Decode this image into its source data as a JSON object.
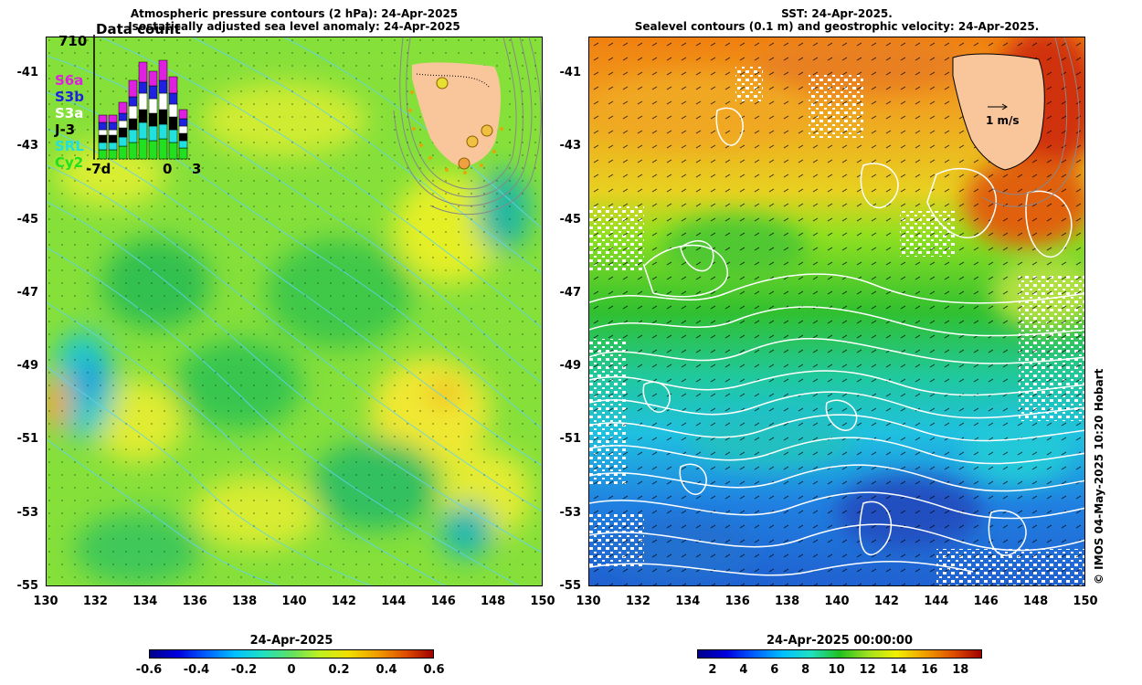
{
  "left_panel": {
    "title_line1": "Atmospheric pressure contours (2 hPa): 24-Apr-2025",
    "title_line2": "Isostatically adjusted sea level anomaly: 24-Apr-2025",
    "colorbar": {
      "title": "24-Apr-2025",
      "ticks": [
        "-0.6",
        "-0.4",
        "-0.2",
        "0",
        "0.2",
        "0.4",
        "0.6"
      ],
      "range": [
        -0.6,
        0.6
      ]
    },
    "inset": {
      "title": "Data count",
      "max_label": "710",
      "x_labels": [
        "-7d",
        "0",
        "3"
      ],
      "satellites": [
        {
          "name": "S6a",
          "color": "#e020e0"
        },
        {
          "name": "S3b",
          "color": "#2020e0"
        },
        {
          "name": "S3a",
          "color": "#ffffff"
        },
        {
          "name": "J-3",
          "color": "#000000"
        },
        {
          "name": "SRL",
          "color": "#20e0e0"
        },
        {
          "name": "Cy2",
          "color": "#20e020"
        }
      ]
    }
  },
  "right_panel": {
    "title_line1": "SST: 24-Apr-2025.",
    "title_line2": "Sealevel contours (0.1 m) and geostrophic velocity: 24-Apr-2025.",
    "velocity_scale_label": "1 m/s",
    "colorbar": {
      "title": "24-Apr-2025 00:00:00",
      "ticks": [
        "2",
        "4",
        "6",
        "8",
        "10",
        "12",
        "14",
        "16",
        "18"
      ],
      "range": [
        1,
        19.4
      ]
    }
  },
  "axes": {
    "x_ticks": [
      "130",
      "132",
      "134",
      "136",
      "138",
      "140",
      "142",
      "144",
      "146",
      "148",
      "150"
    ],
    "y_ticks": [
      "-41",
      "-43",
      "-45",
      "-47",
      "-49",
      "-51",
      "-53",
      "-55"
    ],
    "lon_range": [
      130,
      150
    ],
    "lat_range": [
      -55,
      -40
    ]
  },
  "credit": "© IMOS 04-May-2025 10:20 Hobart",
  "colors": {
    "land": "#f9c59b",
    "contour_white": "#ffffff",
    "contour_cyan": "#5fd3f0"
  }
}
